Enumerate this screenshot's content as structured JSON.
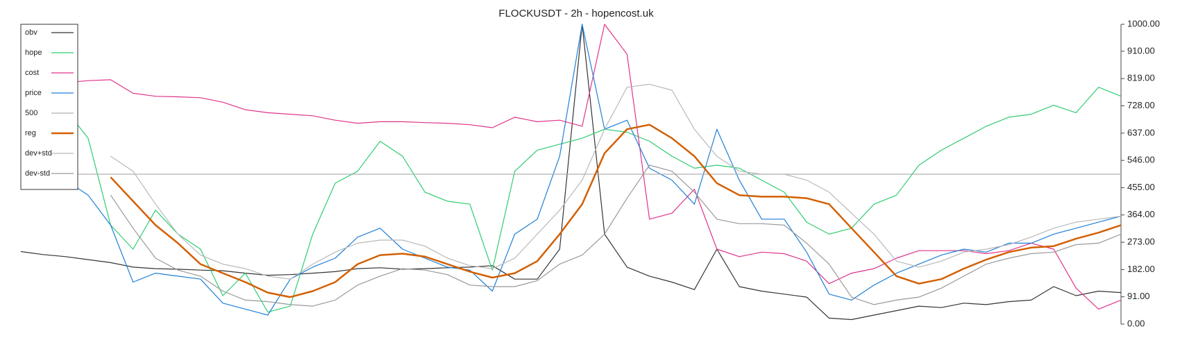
{
  "chart_data": {
    "type": "line",
    "title": "FLOCKUSDT - 2h - hopencost.uk",
    "ylim": [
      0,
      1000
    ],
    "yticks": [
      {
        "value": 0,
        "label": "0.00"
      },
      {
        "value": 91,
        "label": "91.00"
      },
      {
        "value": 182,
        "label": "182.00"
      },
      {
        "value": 273,
        "label": "273.00"
      },
      {
        "value": 364,
        "label": "364.00"
      },
      {
        "value": 455,
        "label": "455.00"
      },
      {
        "value": 546,
        "label": "546.00"
      },
      {
        "value": 637,
        "label": "637.00"
      },
      {
        "value": 728,
        "label": "728.00"
      },
      {
        "value": 819,
        "label": "819.00"
      },
      {
        "value": 910,
        "label": "910.00"
      },
      {
        "value": 1000,
        "label": "1000.00"
      }
    ],
    "legend": "upper left",
    "series": [
      {
        "name": "obv",
        "color": "#333333",
        "width": 1.2,
        "values": [
          242,
          232,
          225,
          215,
          205,
          190,
          185,
          183,
          180,
          178,
          170,
          163,
          165,
          170,
          175,
          185,
          188,
          183,
          185,
          188,
          190,
          195,
          150,
          150,
          250,
          1000,
          300,
          190,
          160,
          140,
          115,
          250,
          125,
          110,
          100,
          90,
          20,
          15,
          30,
          45,
          60,
          55,
          70,
          65,
          75,
          80,
          125,
          95,
          110,
          105
        ]
      },
      {
        "name": "hope",
        "color": "#2ecc71",
        "width": 1.2,
        "values": [
          null,
          null,
          715,
          620,
          330,
          250,
          380,
          300,
          250,
          95,
          170,
          40,
          60,
          300,
          470,
          510,
          610,
          560,
          440,
          410,
          400,
          180,
          510,
          580,
          600,
          620,
          650,
          640,
          610,
          560,
          520,
          530,
          520,
          480,
          440,
          340,
          300,
          320,
          400,
          430,
          530,
          580,
          620,
          660,
          690,
          700,
          730,
          705,
          790,
          760
        ]
      },
      {
        "name": "cost",
        "color": "#e0338a",
        "width": 1.2,
        "values": [
          808,
          805,
          805,
          812,
          815,
          770,
          760,
          758,
          755,
          740,
          715,
          705,
          700,
          695,
          680,
          670,
          675,
          675,
          672,
          670,
          665,
          655,
          690,
          675,
          680,
          660,
          1000,
          900,
          350,
          370,
          450,
          250,
          225,
          240,
          235,
          210,
          135,
          170,
          185,
          220,
          245,
          245,
          245,
          235,
          245,
          270,
          250,
          120,
          50,
          80
        ]
      },
      {
        "name": "price",
        "color": "#1f7fd6",
        "width": 1.2,
        "values": [
          null,
          null,
          480,
          430,
          330,
          140,
          170,
          160,
          150,
          70,
          50,
          30,
          150,
          190,
          220,
          290,
          320,
          250,
          220,
          190,
          180,
          110,
          300,
          350,
          560,
          1000,
          650,
          680,
          520,
          480,
          400,
          650,
          480,
          350,
          350,
          240,
          100,
          80,
          130,
          170,
          200,
          230,
          250,
          240,
          270,
          270,
          300,
          320,
          340,
          360
        ]
      },
      {
        "name": "500",
        "color": "#b0b0b0",
        "width": 1.2,
        "values": [
          500,
          500,
          500,
          500,
          500,
          500,
          500,
          500,
          500,
          500,
          500,
          500,
          500,
          500,
          500,
          500,
          500,
          500,
          500,
          500,
          500,
          500,
          500,
          500,
          500,
          500,
          500,
          500,
          500,
          500,
          500,
          500,
          500,
          500,
          500,
          500,
          500,
          500,
          500,
          500,
          500,
          500,
          500,
          500,
          500,
          500,
          500,
          500,
          500,
          500
        ]
      },
      {
        "name": "reg",
        "color": "#d35f00",
        "width": 2.5,
        "values": [
          null,
          null,
          null,
          null,
          490,
          410,
          330,
          270,
          200,
          170,
          140,
          105,
          90,
          110,
          140,
          200,
          230,
          235,
          225,
          200,
          175,
          155,
          170,
          210,
          300,
          400,
          570,
          650,
          665,
          620,
          560,
          470,
          430,
          425,
          425,
          420,
          400,
          320,
          240,
          160,
          135,
          150,
          185,
          215,
          240,
          255,
          260,
          285,
          305,
          330
        ]
      },
      {
        "name": "dev+std",
        "color": "#b8b8b8",
        "width": 1.2,
        "values": [
          null,
          null,
          null,
          null,
          560,
          510,
          400,
          300,
          230,
          200,
          185,
          160,
          150,
          200,
          240,
          270,
          280,
          280,
          260,
          220,
          195,
          185,
          220,
          300,
          380,
          480,
          650,
          790,
          800,
          780,
          650,
          560,
          510,
          500,
          500,
          480,
          440,
          370,
          300,
          210,
          190,
          210,
          240,
          250,
          265,
          290,
          320,
          340,
          350,
          360
        ]
      },
      {
        "name": "dev-std",
        "color": "#999999",
        "width": 1.2,
        "values": [
          null,
          null,
          null,
          null,
          430,
          320,
          220,
          180,
          160,
          110,
          80,
          75,
          65,
          60,
          80,
          130,
          160,
          185,
          180,
          165,
          130,
          125,
          125,
          145,
          200,
          230,
          300,
          420,
          530,
          510,
          440,
          350,
          335,
          335,
          330,
          270,
          200,
          90,
          65,
          80,
          90,
          120,
          160,
          200,
          220,
          235,
          240,
          265,
          270,
          300
        ]
      }
    ]
  }
}
